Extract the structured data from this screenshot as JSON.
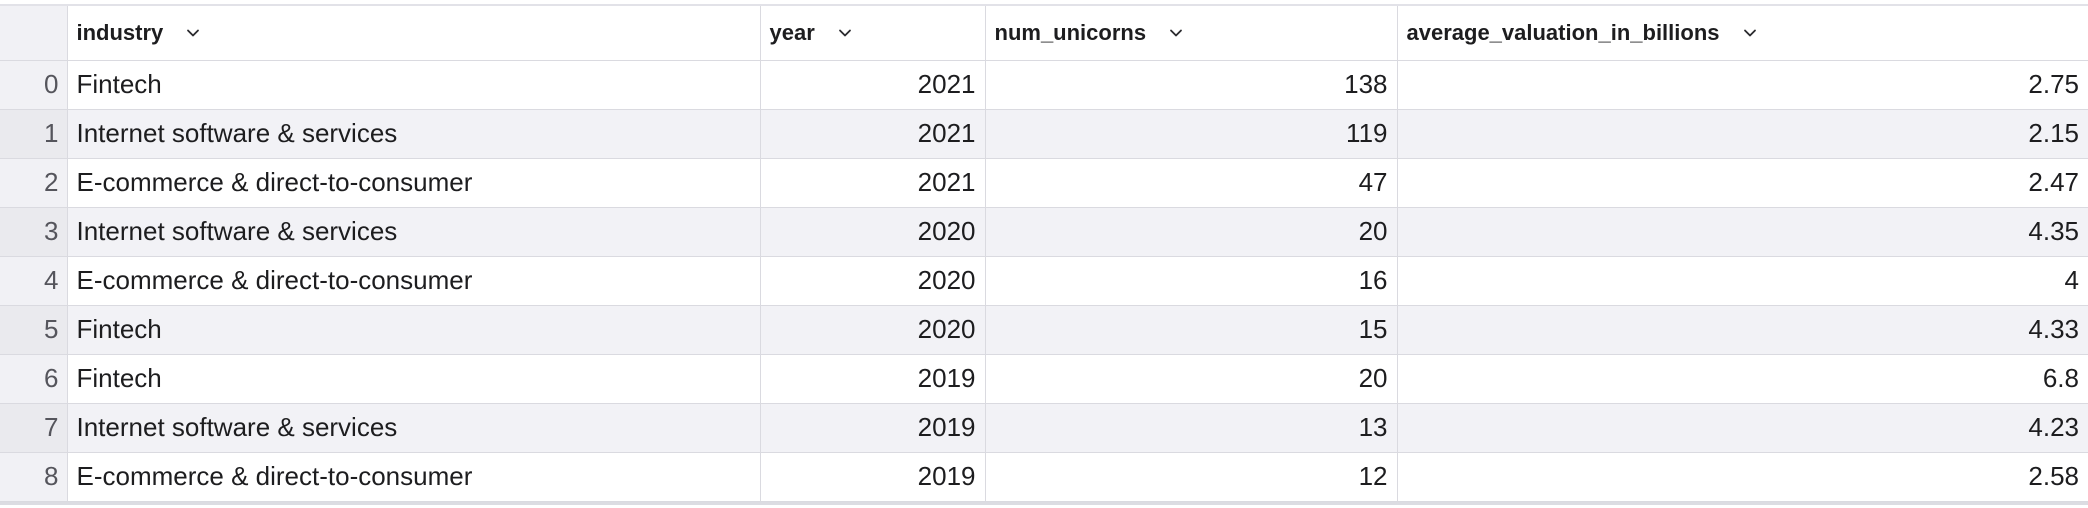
{
  "table": {
    "columns": [
      {
        "key": "industry",
        "label": "industry"
      },
      {
        "key": "year",
        "label": "year"
      },
      {
        "key": "num_unicorns",
        "label": "num_unicorns"
      },
      {
        "key": "average_valuation_in_billions",
        "label": "average_valuation_in_billions"
      }
    ],
    "rows": [
      {
        "index": "0",
        "industry": "Fintech",
        "year": "2021",
        "num_unicorns": "138",
        "average_valuation_in_billions": "2.75"
      },
      {
        "index": "1",
        "industry": "Internet software & services",
        "year": "2021",
        "num_unicorns": "119",
        "average_valuation_in_billions": "2.15"
      },
      {
        "index": "2",
        "industry": "E-commerce & direct-to-consumer",
        "year": "2021",
        "num_unicorns": "47",
        "average_valuation_in_billions": "2.47"
      },
      {
        "index": "3",
        "industry": "Internet software & services",
        "year": "2020",
        "num_unicorns": "20",
        "average_valuation_in_billions": "4.35"
      },
      {
        "index": "4",
        "industry": "E-commerce & direct-to-consumer",
        "year": "2020",
        "num_unicorns": "16",
        "average_valuation_in_billions": "4"
      },
      {
        "index": "5",
        "industry": "Fintech",
        "year": "2020",
        "num_unicorns": "15",
        "average_valuation_in_billions": "4.33"
      },
      {
        "index": "6",
        "industry": "Fintech",
        "year": "2019",
        "num_unicorns": "20",
        "average_valuation_in_billions": "6.8"
      },
      {
        "index": "7",
        "industry": "Internet software & services",
        "year": "2019",
        "num_unicorns": "13",
        "average_valuation_in_billions": "4.23"
      },
      {
        "index": "8",
        "industry": "E-commerce & direct-to-consumer",
        "year": "2019",
        "num_unicorns": "12",
        "average_valuation_in_billions": "2.58"
      }
    ],
    "header_icon": "chevron-down-icon"
  },
  "colors": {
    "header_bg": "#ffffff",
    "index_bg": "#f1f1f5",
    "stripe_bg": "#f2f2f6",
    "border": "#dadae0",
    "text": "#1d1d1f"
  }
}
